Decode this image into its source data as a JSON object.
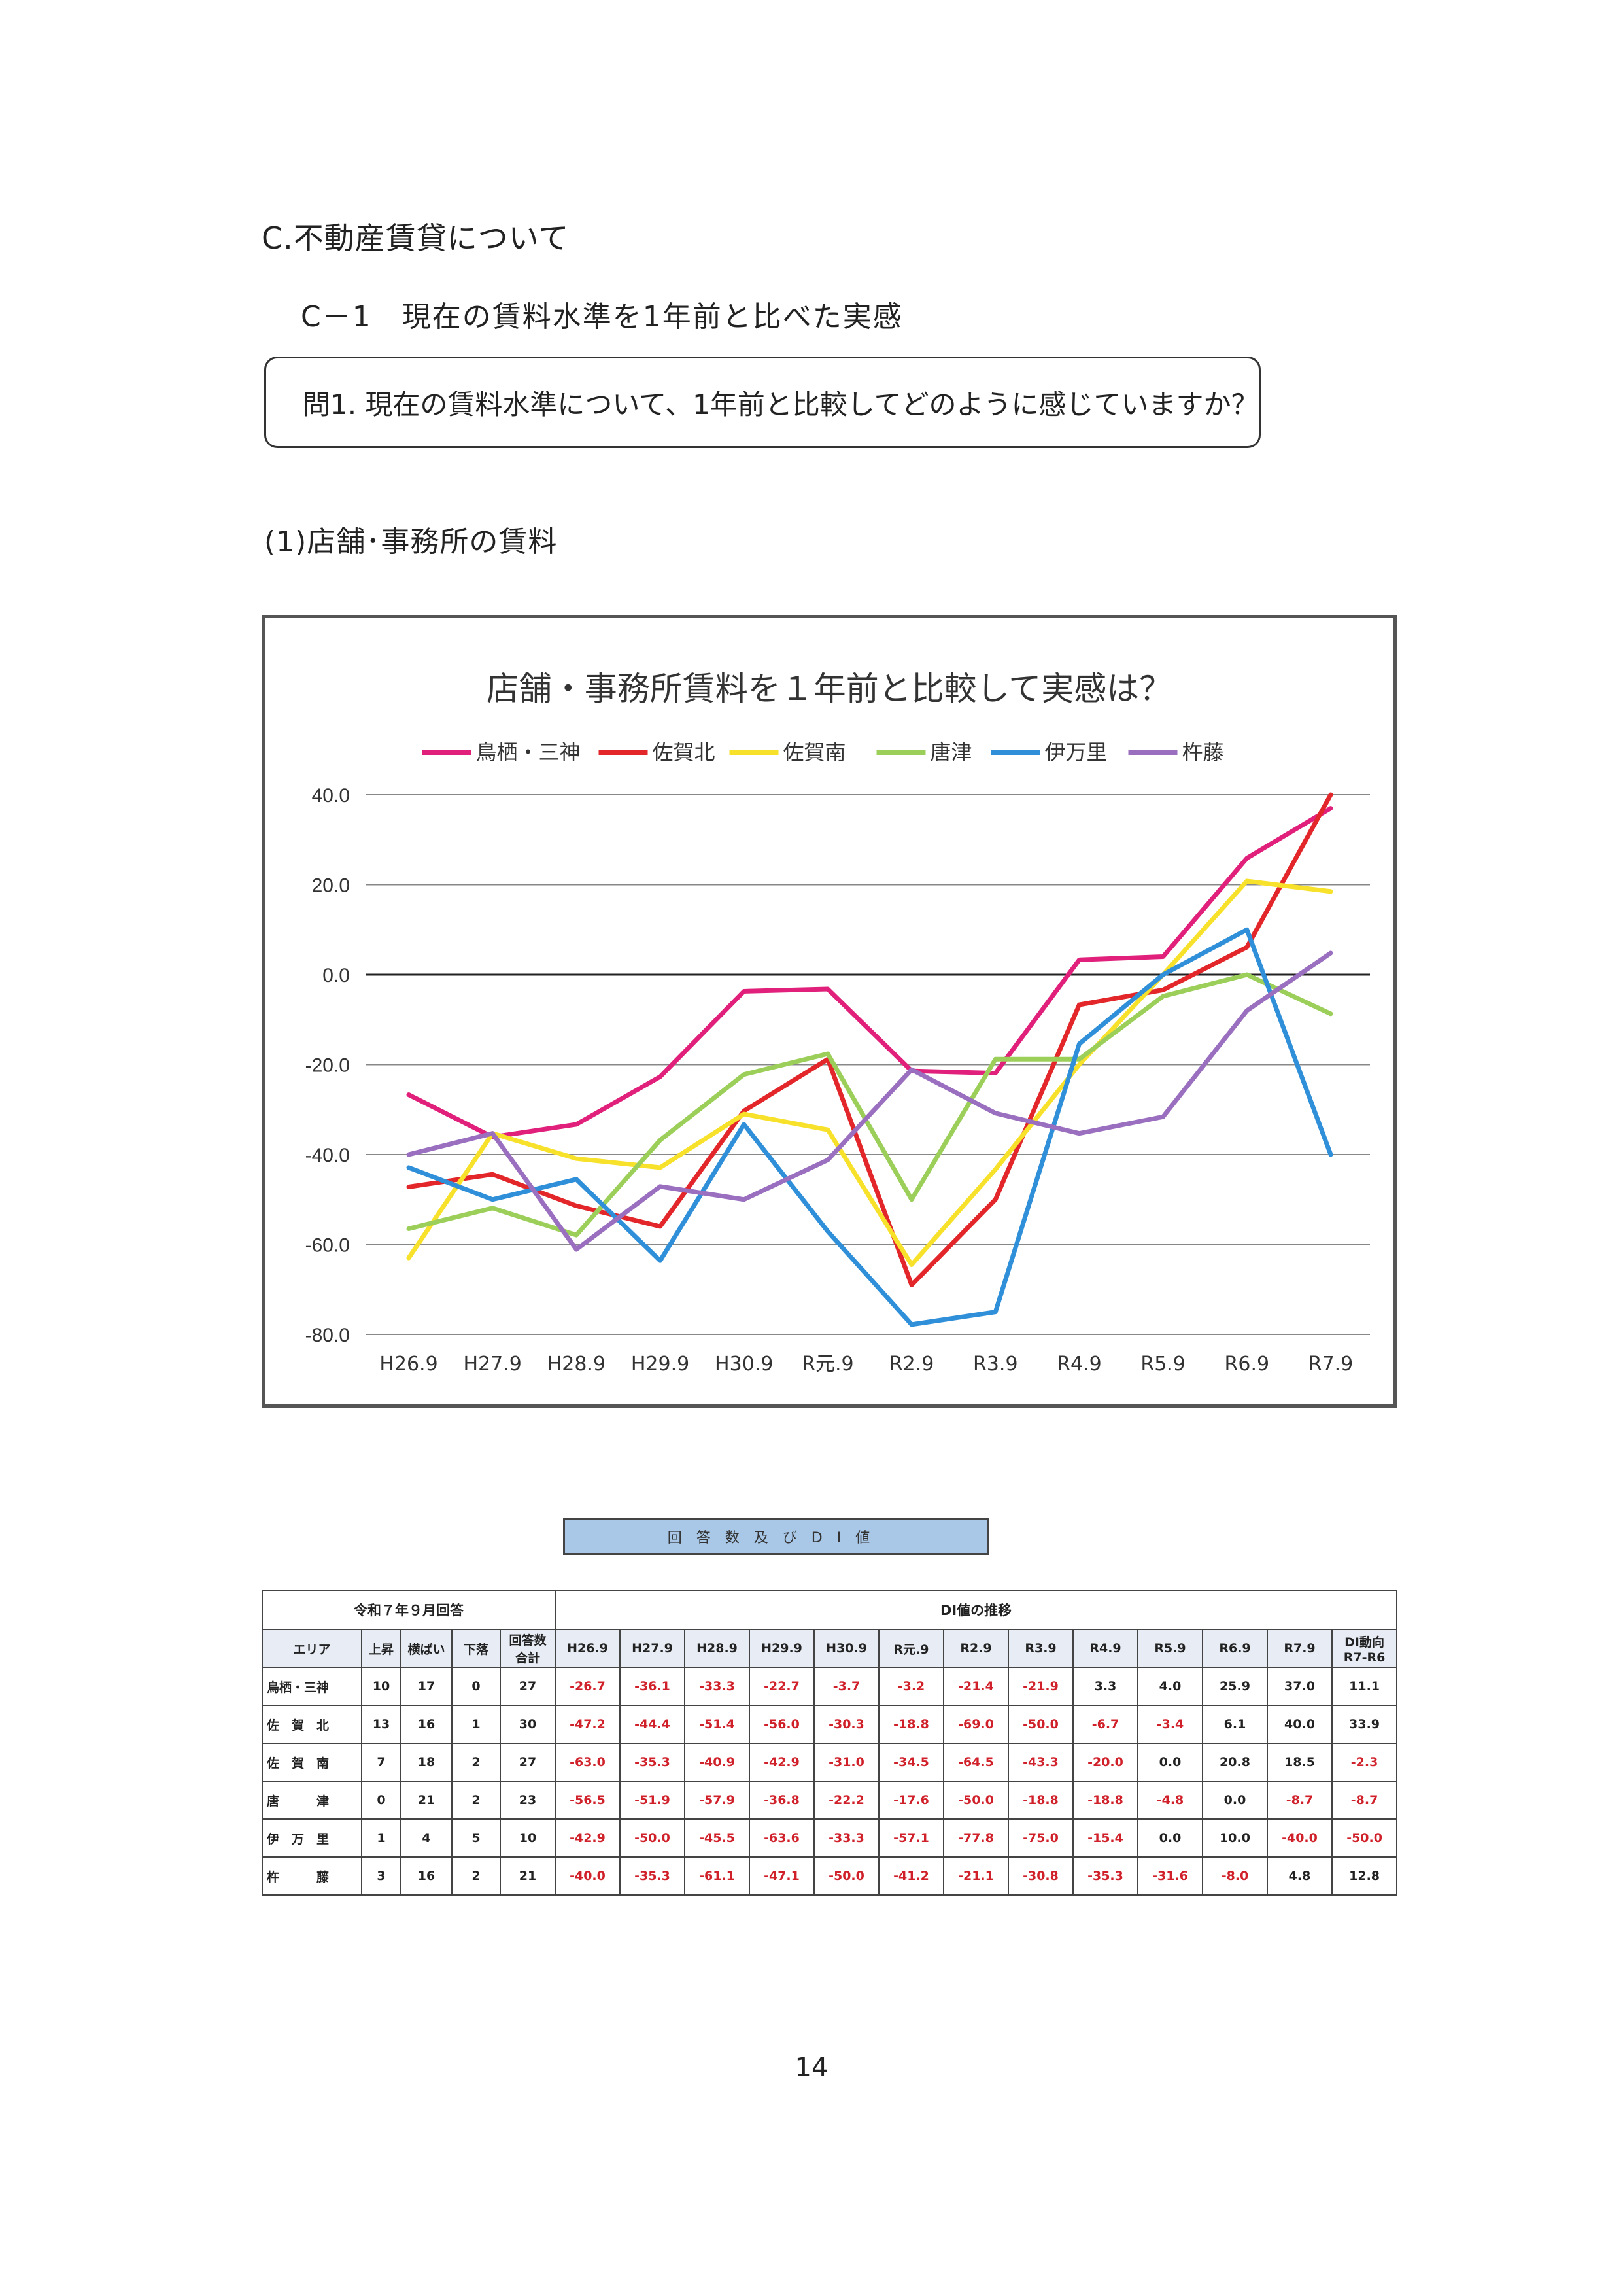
{
  "document": {
    "section_title": "C.不動産賃貸について",
    "subsection_title": "C－1　現在の賃料水準を1年前と比べた実感",
    "question": "問1. 現在の賃料水準について、1年前と比較してどのように感じていますか？",
    "item_title": "(1)店舗･事務所の賃料",
    "page_number": "14"
  },
  "chart_data": {
    "type": "line",
    "title": "店舗・事務所賃料を１年前と比較して実感は？",
    "categories": [
      "H26.9",
      "H27.9",
      "H28.9",
      "H29.9",
      "H30.9",
      "R元.9",
      "R2.9",
      "R3.9",
      "R4.9",
      "R5.9",
      "R6.9",
      "R7.9"
    ],
    "yticks": [
      "40.0",
      "20.0",
      "0.0",
      "-20.0",
      "-40.0",
      "-60.0",
      "-80.0"
    ],
    "ylim": [
      -80,
      40
    ],
    "grid": true,
    "legend_position": "top",
    "series": [
      {
        "name": "鳥栖・三神",
        "color": "#e0207a",
        "values": [
          -26.7,
          -36.1,
          -33.3,
          -22.7,
          -3.7,
          -3.2,
          -21.4,
          -21.9,
          3.3,
          4.0,
          25.9,
          37.0
        ]
      },
      {
        "name": "佐賀北",
        "color": "#e2262a",
        "values": [
          -47.2,
          -44.4,
          -51.4,
          -56.0,
          -30.3,
          -18.8,
          -69.0,
          -50.0,
          -6.7,
          -3.4,
          6.1,
          40.0
        ]
      },
      {
        "name": "佐賀南",
        "color": "#f7e12a",
        "values": [
          -63.0,
          -35.3,
          -40.9,
          -42.9,
          -31.0,
          -34.5,
          -64.5,
          -43.3,
          -20.0,
          0.0,
          20.8,
          18.5
        ]
      },
      {
        "name": "唐津",
        "color": "#9ccf5a",
        "values": [
          -56.5,
          -51.9,
          -57.9,
          -36.8,
          -22.2,
          -17.6,
          -50.0,
          -18.8,
          -18.8,
          -4.8,
          0.0,
          -8.7
        ]
      },
      {
        "name": "伊万里",
        "color": "#2f8fd8",
        "values": [
          -42.9,
          -50.0,
          -45.5,
          -63.6,
          -33.3,
          -57.1,
          -77.8,
          -75.0,
          -15.4,
          0.0,
          10.0,
          -40.0
        ]
      },
      {
        "name": "杵藤",
        "color": "#9a6fbf",
        "values": [
          -40.0,
          -35.3,
          -61.1,
          -47.1,
          -50.0,
          -41.2,
          -21.1,
          -30.8,
          -35.3,
          -31.6,
          -8.0,
          4.8
        ]
      }
    ]
  },
  "table": {
    "caption": "回答数及びDI値",
    "left_group_header": "令和７年９月回答",
    "right_group_header": "DI値の推移",
    "count_headers": [
      "エリア",
      "上昇",
      "横ばい",
      "下落",
      "回答数\n合計"
    ],
    "di_headers": [
      "H26.9",
      "H27.9",
      "H28.9",
      "H29.9",
      "H30.9",
      "R元.9",
      "R2.9",
      "R3.9",
      "R4.9",
      "R5.9",
      "R6.9",
      "R7.9"
    ],
    "trend_header": "DI動向\nR7-R6",
    "rows": [
      {
        "area": "鳥栖・三神",
        "up": "10",
        "flat": "17",
        "down": "0",
        "total": "27",
        "di": [
          "-26.7",
          "-36.1",
          "-33.3",
          "-22.7",
          "-3.7",
          "-3.2",
          "-21.4",
          "-21.9",
          "3.3",
          "4.0",
          "25.9",
          "37.0"
        ],
        "trend": "11.1"
      },
      {
        "area": "佐　賀　北",
        "up": "13",
        "flat": "16",
        "down": "1",
        "total": "30",
        "di": [
          "-47.2",
          "-44.4",
          "-51.4",
          "-56.0",
          "-30.3",
          "-18.8",
          "-69.0",
          "-50.0",
          "-6.7",
          "-3.4",
          "6.1",
          "40.0"
        ],
        "trend": "33.9"
      },
      {
        "area": "佐　賀　南",
        "up": "7",
        "flat": "18",
        "down": "2",
        "total": "27",
        "di": [
          "-63.0",
          "-35.3",
          "-40.9",
          "-42.9",
          "-31.0",
          "-34.5",
          "-64.5",
          "-43.3",
          "-20.0",
          "0.0",
          "20.8",
          "18.5"
        ],
        "trend": "-2.3"
      },
      {
        "area": "唐　　　津",
        "up": "0",
        "flat": "21",
        "down": "2",
        "total": "23",
        "di": [
          "-56.5",
          "-51.9",
          "-57.9",
          "-36.8",
          "-22.2",
          "-17.6",
          "-50.0",
          "-18.8",
          "-18.8",
          "-4.8",
          "0.0",
          "-8.7"
        ],
        "trend": "-8.7"
      },
      {
        "area": "伊　万　里",
        "up": "1",
        "flat": "4",
        "down": "5",
        "total": "10",
        "di": [
          "-42.9",
          "-50.0",
          "-45.5",
          "-63.6",
          "-33.3",
          "-57.1",
          "-77.8",
          "-75.0",
          "-15.4",
          "0.0",
          "10.0",
          "-40.0"
        ],
        "trend": "-50.0"
      },
      {
        "area": "杵　　　藤",
        "up": "3",
        "flat": "16",
        "down": "2",
        "total": "21",
        "di": [
          "-40.0",
          "-35.3",
          "-61.1",
          "-47.1",
          "-50.0",
          "-41.2",
          "-21.1",
          "-30.8",
          "-35.3",
          "-31.6",
          "-8.0",
          "4.8"
        ],
        "trend": "12.8"
      }
    ]
  }
}
